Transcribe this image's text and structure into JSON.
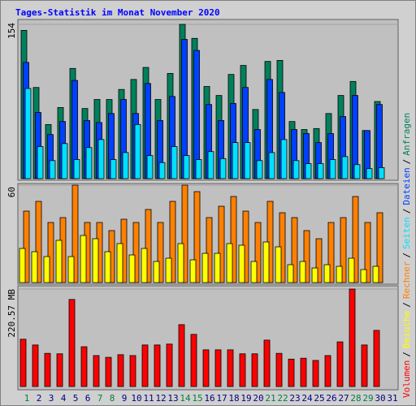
{
  "chart_data": {
    "type": "bar",
    "title": "Tages-Statistik im Monat November 2020",
    "categories": [
      "1",
      "2",
      "3",
      "4",
      "5",
      "6",
      "7",
      "8",
      "9",
      "10",
      "11",
      "12",
      "13",
      "14",
      "15",
      "16",
      "17",
      "18",
      "19",
      "20",
      "21",
      "22",
      "23",
      "24",
      "25",
      "26",
      "27",
      "28",
      "29",
      "30",
      "31"
    ],
    "category_colors": [
      "#008040",
      "#000080",
      "#000080",
      "#000080",
      "#000080",
      "#000080",
      "#008040",
      "#008040",
      "#000080",
      "#000080",
      "#000080",
      "#000080",
      "#000080",
      "#008040",
      "#008040",
      "#000080",
      "#000080",
      "#000080",
      "#000080",
      "#000080",
      "#008040",
      "#008040",
      "#000080",
      "#000080",
      "#000080",
      "#000080",
      "#000080",
      "#008040",
      "#008040",
      "#000080",
      "#000080"
    ],
    "legend_separator": "/",
    "panels": [
      {
        "ylim": [
          0,
          154
        ],
        "yticks": [
          154
        ],
        "series": [
          {
            "name": "Anfragen",
            "color": "#00805c",
            "offset": -7,
            "values": [
              148,
              91,
              54,
              71,
              110,
              70,
              79,
              79,
              89,
              99,
              111,
              79,
              105,
              154,
              140,
              92,
              83,
              104,
              113,
              69,
              117,
              118,
              57,
              49,
              50,
              65,
              83,
              97,
              48,
              77,
              null
            ]
          },
          {
            "name": "Dateien",
            "color": "#0040ff",
            "offset": -4.5,
            "values": [
              116,
              66,
              44,
              57,
              98,
              58,
              56,
              65,
              79,
              65,
              95,
              58,
              82,
              139,
              128,
              74,
              58,
              75,
              91,
              49,
              99,
              86,
              49,
              45,
              36,
              45,
              62,
              83,
              48,
              74,
              null
            ]
          },
          {
            "name": "Seiten",
            "color": "#00e0ff",
            "offset": -2,
            "values": [
              90,
              32,
              18,
              35,
              19,
              31,
              39,
              19,
              26,
              54,
              23,
              16,
              32,
              23,
              19,
              27,
              20,
              36,
              36,
              18,
              26,
              39,
              18,
              15,
              15,
              19,
              22,
              14,
              10,
              11,
              null
            ]
          }
        ]
      },
      {
        "ylim": [
          0,
          60
        ],
        "yticks": [
          60
        ],
        "series": [
          {
            "name": "Rechner",
            "color": "#ff8000",
            "offset": -4,
            "values": [
              44,
              50,
              37,
              40,
              60,
              37,
              37,
              32,
              39,
              37,
              45,
              37,
              50,
              60,
              56,
              40,
              47,
              53,
              44,
              37,
              50,
              43,
              40,
              32,
              27,
              37,
              40,
              53,
              37,
              43,
              null
            ]
          },
          {
            "name": "Besuche",
            "color": "#ffff00",
            "offset": -9,
            "values": [
              21,
              19,
              16,
              26,
              16,
              29,
              27,
              19,
              24,
              17,
              21,
              13,
              15,
              24,
              14,
              18,
              18,
              24,
              23,
              13,
              25,
              22,
              11,
              13,
              9,
              11,
              10,
              15,
              8,
              10,
              null
            ]
          }
        ]
      },
      {
        "ylim": [
          0,
          220.57
        ],
        "yticks": [
          {
            "value": 220.57,
            "label": "220.57 MB"
          }
        ],
        "series": [
          {
            "name": "Volumen",
            "color": "#ff0000",
            "offset": -8,
            "values": [
              107,
              94,
              75,
              74,
              197,
              90,
              70,
              66,
              72,
              70,
              94,
              94,
              96,
              140,
              118,
              83,
              83,
              83,
              74,
              74,
              105,
              75,
              62,
              64,
              59,
              70,
              101,
              220.57,
              94,
              127,
              null
            ]
          }
        ]
      }
    ]
  }
}
